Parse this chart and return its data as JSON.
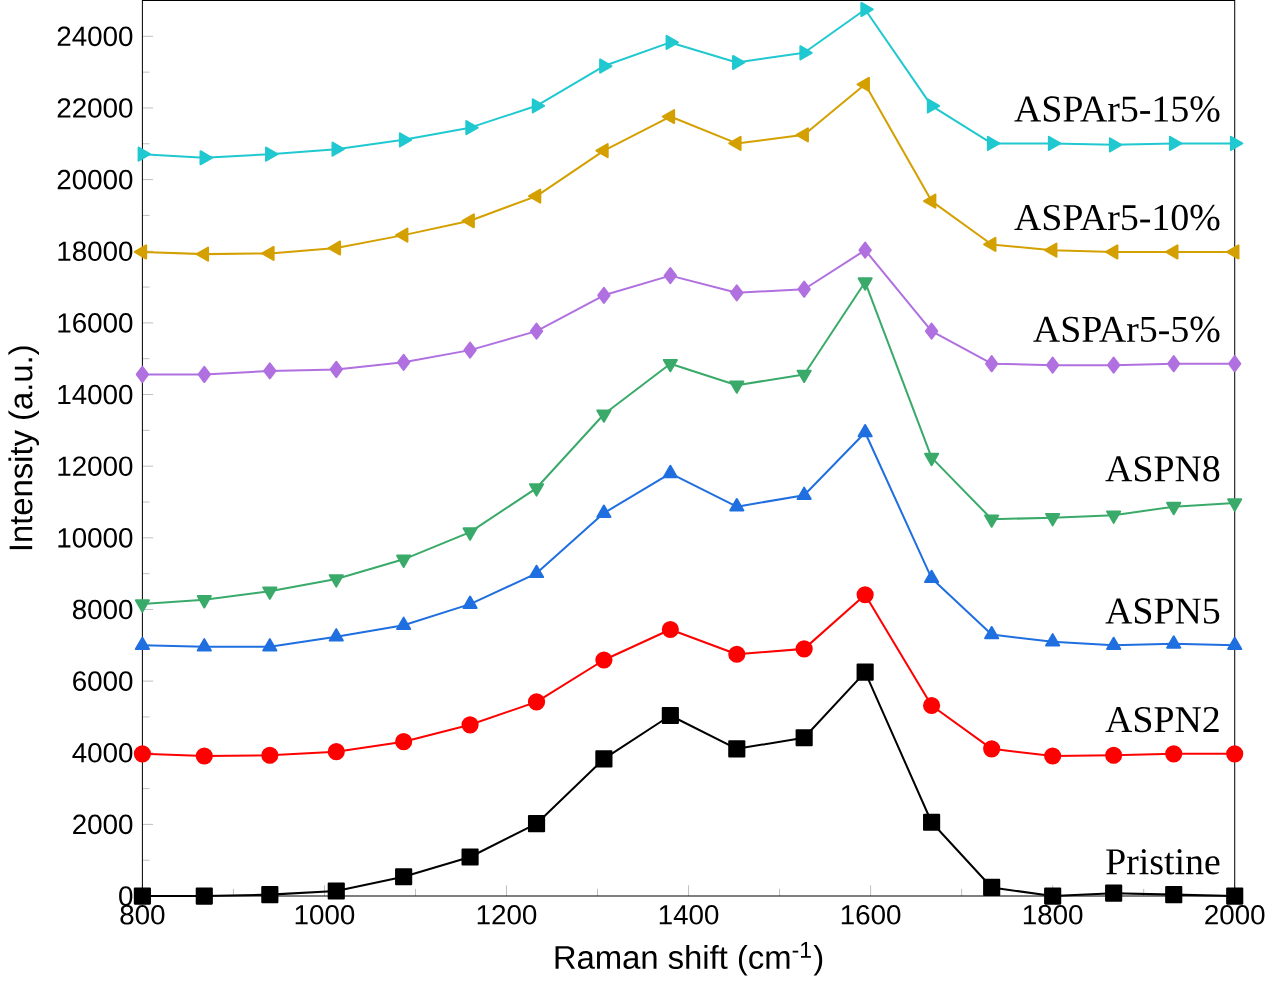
{
  "chart_data": {
    "type": "line",
    "xlabel": "Raman shift (cm$^{-1}$)",
    "ylabel": "Intensity (a.u.)",
    "x": [
      800,
      868,
      940,
      1013,
      1087,
      1160,
      1233,
      1307,
      1380,
      1453,
      1527,
      1594,
      1667,
      1733,
      1800,
      1867,
      1933,
      2000
    ],
    "xlim": [
      800,
      2000
    ],
    "xticks": [
      800,
      1000,
      1200,
      1400,
      1600,
      1800,
      2000
    ],
    "ylim": [
      0,
      25000
    ],
    "yticks": [
      0,
      2000,
      4000,
      6000,
      8000,
      10000,
      12000,
      14000,
      16000,
      18000,
      20000,
      22000,
      24000
    ],
    "grid": false,
    "series": [
      {
        "name": "Pristine",
        "color": "#000000",
        "marker": "square",
        "values": [
          0,
          0,
          40,
          140,
          540,
          1090,
          2020,
          3830,
          5040,
          4110,
          4420,
          6250,
          2060,
          240,
          0,
          80,
          40,
          0
        ]
      },
      {
        "name": "ASPN2",
        "color": "#ff0000",
        "marker": "circle",
        "values": [
          3970,
          3910,
          3930,
          4030,
          4310,
          4780,
          5420,
          6590,
          7440,
          6750,
          6900,
          8410,
          5320,
          4110,
          3910,
          3930,
          3970,
          3970
        ]
      },
      {
        "name": "ASPN5",
        "color": "#1f6fe0",
        "marker": "triangle",
        "values": [
          7000,
          6960,
          6960,
          7240,
          7560,
          8150,
          9010,
          10690,
          11800,
          10870,
          11190,
          12940,
          8870,
          7300,
          7100,
          7000,
          7040,
          7000
        ]
      },
      {
        "name": "ASPN8",
        "color": "#3aaa6a",
        "marker": "triangle-down",
        "values": [
          8150,
          8270,
          8510,
          8850,
          9400,
          10160,
          11390,
          13450,
          14860,
          14260,
          14560,
          17140,
          12240,
          10520,
          10560,
          10630,
          10870,
          10970
        ]
      },
      {
        "name": "ASPAr5-5%",
        "color": "#b070e0",
        "marker": "diamond",
        "values": [
          14560,
          14560,
          14660,
          14700,
          14900,
          15240,
          15770,
          16770,
          17320,
          16840,
          16940,
          18030,
          15770,
          14860,
          14820,
          14820,
          14860,
          14860
        ]
      },
      {
        "name": "ASPAr5-10%",
        "color": "#d4a000",
        "marker": "triangle-left",
        "values": [
          17980,
          17920,
          17940,
          18090,
          18450,
          18850,
          19540,
          20810,
          21760,
          21010,
          21250,
          22660,
          19400,
          18190,
          18030,
          17980,
          17980,
          17980
        ]
      },
      {
        "name": "ASPAr5-15%",
        "color": "#20c8d0",
        "marker": "triangle-right",
        "values": [
          20710,
          20610,
          20710,
          20850,
          21110,
          21450,
          22060,
          23170,
          23830,
          23270,
          23540,
          24750,
          22060,
          21010,
          21010,
          20970,
          21010,
          21010
        ]
      }
    ]
  }
}
